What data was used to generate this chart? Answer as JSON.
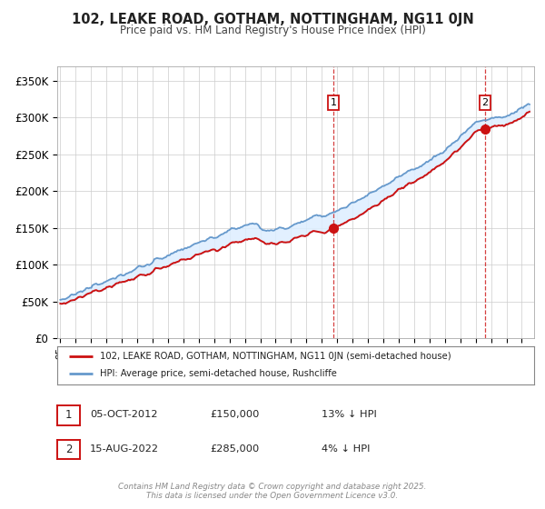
{
  "title": "102, LEAKE ROAD, GOTHAM, NOTTINGHAM, NG11 0JN",
  "subtitle": "Price paid vs. HM Land Registry's House Price Index (HPI)",
  "background_color": "#ffffff",
  "plot_bg_color": "#ffffff",
  "grid_color": "#cccccc",
  "hpi_color": "#6699cc",
  "hpi_fill_color": "#ddeeff",
  "price_color": "#cc1111",
  "sale1_year": 2012.75,
  "sale2_year": 2022.62,
  "sale1_price": 150000,
  "sale2_price": 285000,
  "legend1": "102, LEAKE ROAD, GOTHAM, NOTTINGHAM, NG11 0JN (semi-detached house)",
  "legend2": "HPI: Average price, semi-detached house, Rushcliffe",
  "sale1_label_date": "05-OCT-2012",
  "sale1_label_price": "£150,000",
  "sale1_label_hpi": "13% ↓ HPI",
  "sale2_label_date": "15-AUG-2022",
  "sale2_label_price": "£285,000",
  "sale2_label_hpi": "4% ↓ HPI",
  "footer": "Contains HM Land Registry data © Crown copyright and database right 2025.\nThis data is licensed under the Open Government Licence v3.0.",
  "ytick_labels": [
    "£0",
    "£50K",
    "£100K",
    "£150K",
    "£200K",
    "£250K",
    "£300K",
    "£350K"
  ],
  "ytick_values": [
    0,
    50000,
    100000,
    150000,
    200000,
    250000,
    300000,
    350000
  ],
  "ylim": [
    0,
    370000
  ],
  "xlim_start": 1994.8,
  "xlim_end": 2025.8
}
